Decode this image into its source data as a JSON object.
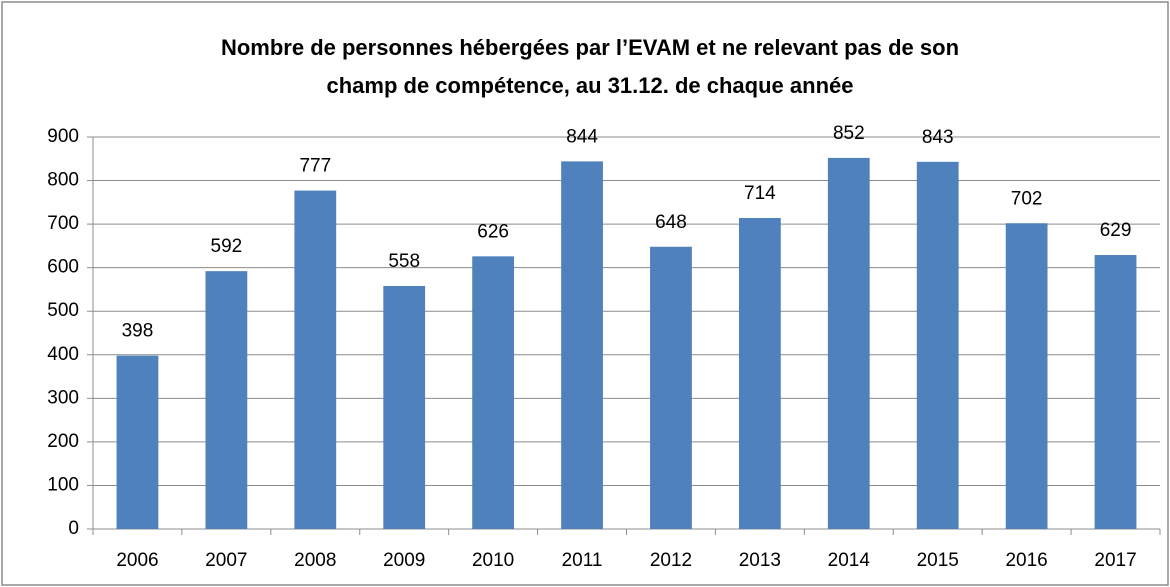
{
  "chart_data": {
    "type": "bar",
    "title": [
      "Nombre de personnes  hébergées par l’EVAM et ne relevant pas de son",
      "champ de compétence, au 31.12. de chaque année"
    ],
    "categories": [
      "2006",
      "2007",
      "2008",
      "2009",
      "2010",
      "2011",
      "2012",
      "2013",
      "2014",
      "2015",
      "2016",
      "2017"
    ],
    "values": [
      398,
      592,
      777,
      558,
      626,
      844,
      648,
      714,
      852,
      843,
      702,
      629
    ],
    "color": "#4f81bd",
    "ylim": [
      0,
      900
    ],
    "yticks": [
      0,
      100,
      200,
      300,
      400,
      500,
      600,
      700,
      800,
      900
    ],
    "grid": true
  }
}
